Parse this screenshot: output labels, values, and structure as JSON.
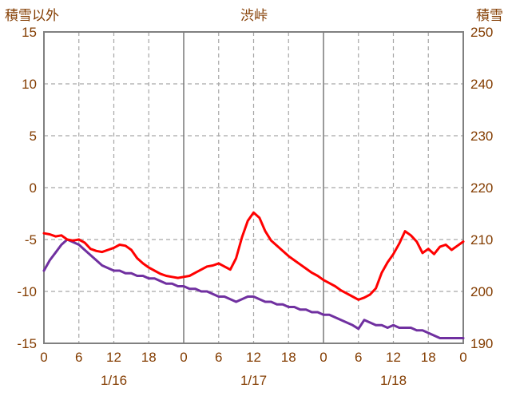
{
  "colors": {
    "text": "#833C00",
    "frame": "#808080",
    "grid_dashed": "#A6A6A6",
    "grid_solid": "#808080",
    "red_line": "#FF0000",
    "purple_line": "#7030A0",
    "background": "#FFFFFF"
  },
  "chart_data": {
    "type": "line",
    "title": "渋峠",
    "legend": "none",
    "grid": "on",
    "left_axis": {
      "label": "積雪以外",
      "min": -15,
      "max": 15,
      "ticks": [
        15,
        10,
        5,
        0,
        -5,
        -10,
        -15
      ]
    },
    "right_axis": {
      "label": "積雪",
      "min": 190,
      "max": 250,
      "ticks": [
        250,
        240,
        230,
        220,
        210,
        200,
        190
      ]
    },
    "x_axis": {
      "min": 0,
      "max": 72,
      "tick_interval": 6,
      "tick_labels": [
        "0",
        "6",
        "12",
        "18",
        "0",
        "6",
        "12",
        "18",
        "0",
        "6",
        "12",
        "18",
        "0"
      ],
      "date_labels": [
        {
          "label": "1/16",
          "hour": 12
        },
        {
          "label": "1/17",
          "hour": 36
        },
        {
          "label": "1/18",
          "hour": 60
        }
      ]
    },
    "series": [
      {
        "name": "snow-depth-purple",
        "axis": "right",
        "color": "#7030A0",
        "values": [
          204,
          206,
          207.5,
          209,
          210,
          209.5,
          209,
          208,
          207,
          206,
          205,
          204.5,
          204,
          204,
          203.5,
          203.5,
          203,
          203,
          202.5,
          202.5,
          202,
          201.5,
          201.5,
          201,
          201,
          200.5,
          200.5,
          200,
          200,
          199.5,
          199,
          199,
          198.5,
          198,
          198.5,
          199,
          199,
          198.5,
          198,
          198,
          197.5,
          197.5,
          197,
          197,
          196.5,
          196.5,
          196,
          196,
          195.5,
          195.5,
          195,
          194.5,
          194,
          193.5,
          192.8,
          194.5,
          194,
          193.5,
          193.5,
          193,
          193.5,
          193,
          193,
          193,
          192.5,
          192.5,
          192,
          191.5,
          191,
          191,
          191,
          191,
          191
        ]
      },
      {
        "name": "non-snow-red",
        "axis": "left",
        "color": "#FF0000",
        "values": [
          -4.4,
          -4.5,
          -4.7,
          -4.6,
          -5.0,
          -5.1,
          -5.0,
          -5.3,
          -5.9,
          -6.1,
          -6.2,
          -6.0,
          -5.8,
          -5.5,
          -5.6,
          -6.0,
          -6.8,
          -7.3,
          -7.7,
          -8.0,
          -8.3,
          -8.5,
          -8.6,
          -8.7,
          -8.6,
          -8.5,
          -8.2,
          -7.9,
          -7.6,
          -7.5,
          -7.3,
          -7.6,
          -7.9,
          -6.8,
          -4.8,
          -3.2,
          -2.4,
          -2.9,
          -4.2,
          -5.1,
          -5.6,
          -6.1,
          -6.6,
          -7.0,
          -7.4,
          -7.8,
          -8.2,
          -8.5,
          -8.9,
          -9.2,
          -9.5,
          -9.9,
          -10.2,
          -10.5,
          -10.8,
          -10.6,
          -10.3,
          -9.7,
          -8.2,
          -7.2,
          -6.4,
          -5.4,
          -4.2,
          -4.6,
          -5.2,
          -6.3,
          -5.9,
          -6.4,
          -5.7,
          -5.5,
          -6.0,
          -5.6,
          -5.2
        ]
      }
    ]
  }
}
